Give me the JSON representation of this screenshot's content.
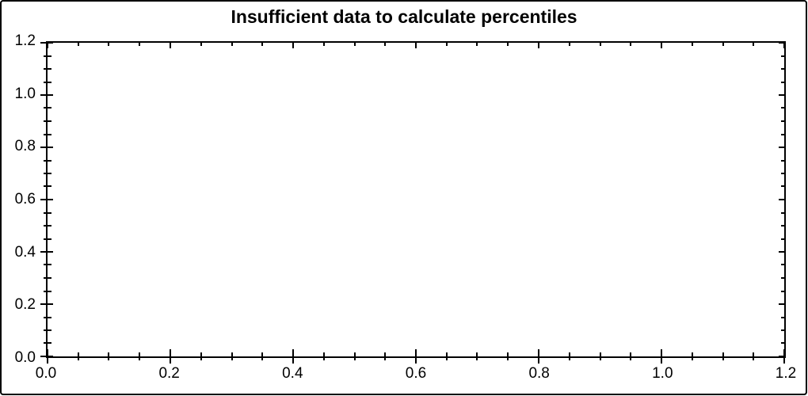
{
  "window": {
    "background": "#ffffff",
    "border_color": "#000000"
  },
  "chart_data": {
    "type": "line",
    "title": "Insufficient data to calculate percentiles",
    "series": [],
    "xlim": [
      0.0,
      1.2
    ],
    "ylim": [
      0.0,
      1.2
    ],
    "x_tick_labels": [
      "0.0",
      "0.2",
      "0.4",
      "0.6",
      "0.8",
      "1.0",
      "1.2"
    ],
    "y_tick_labels": [
      "0.0",
      "0.2",
      "0.4",
      "0.6",
      "0.8",
      "1.0",
      "1.2"
    ],
    "minor_subdivisions": 4,
    "grid": false,
    "legend_position": "none",
    "axis_color": "#000000",
    "text_color": "#000000",
    "tick_style": "crossing-on-left-bottom, inward-on-top-right"
  }
}
